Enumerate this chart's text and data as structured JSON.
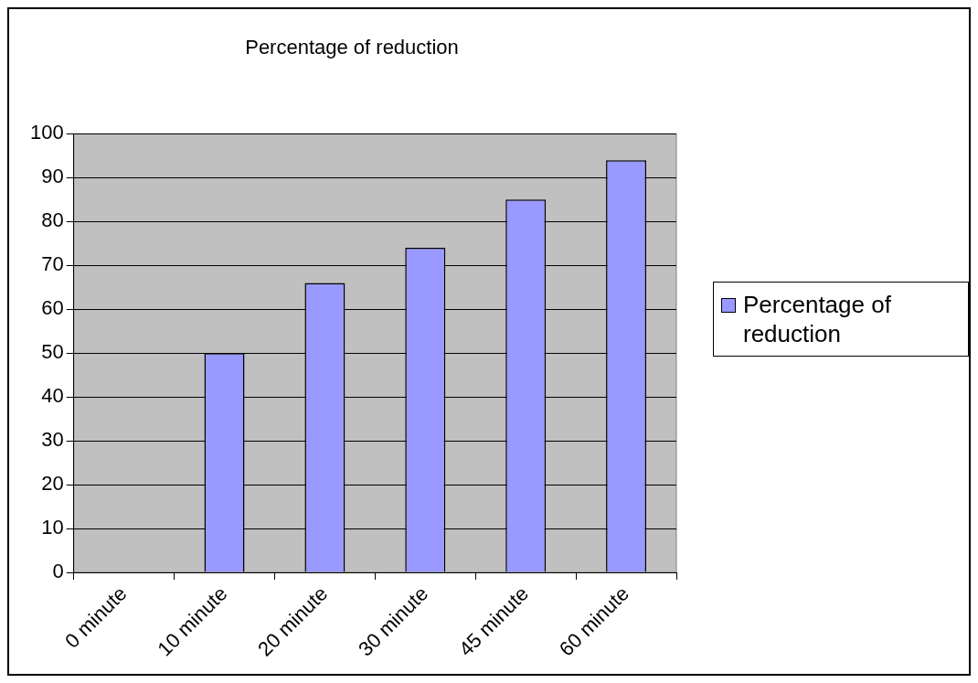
{
  "chart_data": {
    "type": "bar",
    "title": "Percentage of reduction",
    "categories": [
      "0 minute",
      "10 minute",
      "20 minute",
      "30 minute",
      "45 minute",
      "60 minute"
    ],
    "series": [
      {
        "name": "Percentage of reduction",
        "color": "#9999ff",
        "values": [
          0,
          50,
          66,
          74,
          85,
          94
        ]
      }
    ],
    "ylim": [
      0,
      100
    ],
    "yticks": [
      0,
      10,
      20,
      30,
      40,
      50,
      60,
      70,
      80,
      90,
      100
    ],
    "grid": "y",
    "legend": "right"
  }
}
